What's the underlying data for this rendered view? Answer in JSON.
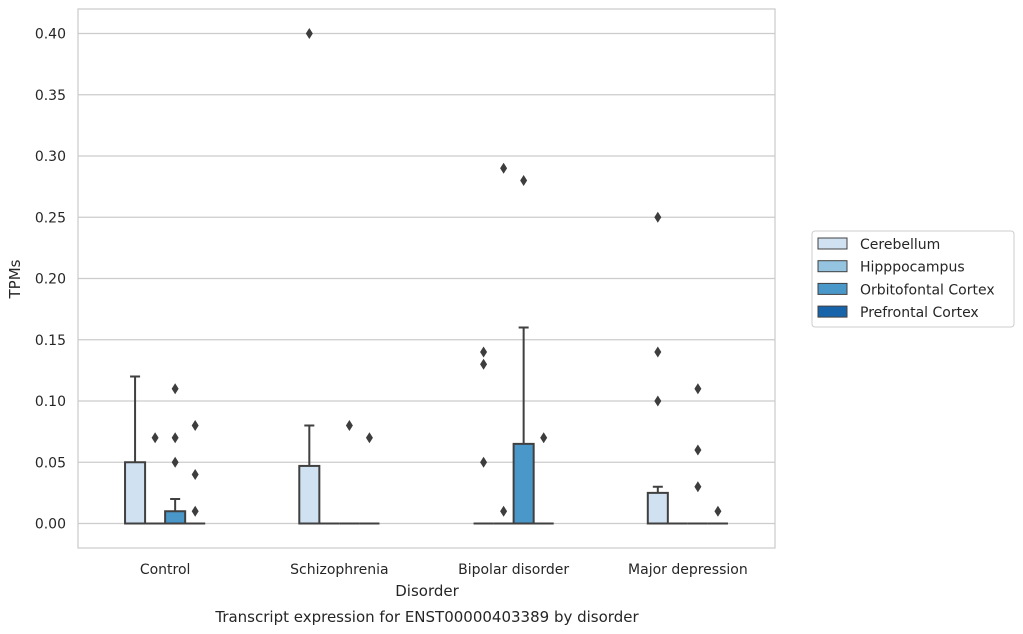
{
  "chart_data": {
    "type": "box",
    "title": "Transcript expression for ENST00000403389 by disorder",
    "xlabel": "Disorder",
    "ylabel": "TPMs",
    "ylim": [
      -0.02,
      0.42
    ],
    "yticks": [
      0.0,
      0.05,
      0.1,
      0.15,
      0.2,
      0.25,
      0.3,
      0.35,
      0.4
    ],
    "ytick_labels": [
      "0.00",
      "0.05",
      "0.10",
      "0.15",
      "0.20",
      "0.25",
      "0.30",
      "0.35",
      "0.40"
    ],
    "grid": true,
    "legend_position": "right",
    "categories": [
      "Control",
      "Schizophrenia",
      "Bipolar disorder",
      "Major depression"
    ],
    "series": [
      {
        "name": "Cerebellum",
        "color": "#d0e1f2",
        "boxes": [
          {
            "q1": 0.0,
            "median": 0.0,
            "q3": 0.05,
            "whisker_low": 0.0,
            "whisker_high": 0.12,
            "outliers": []
          },
          {
            "q1": 0.0,
            "median": 0.0,
            "q3": 0.047,
            "whisker_low": 0.0,
            "whisker_high": 0.08,
            "outliers": [
              0.4
            ]
          },
          {
            "q1": 0.0,
            "median": 0.0,
            "q3": 0.0,
            "whisker_low": 0.0,
            "whisker_high": 0.0,
            "outliers": [
              0.14,
              0.13,
              0.05
            ]
          },
          {
            "q1": 0.0,
            "median": 0.0,
            "q3": 0.025,
            "whisker_low": 0.0,
            "whisker_high": 0.03,
            "outliers": [
              0.25,
              0.14,
              0.1
            ]
          }
        ]
      },
      {
        "name": "Hipppocampus",
        "color": "#94c4df",
        "boxes": [
          {
            "q1": 0.0,
            "median": 0.0,
            "q3": 0.0,
            "whisker_low": 0.0,
            "whisker_high": 0.0,
            "outliers": [
              0.07
            ]
          },
          {
            "q1": 0.0,
            "median": 0.0,
            "q3": 0.0,
            "whisker_low": 0.0,
            "whisker_high": 0.0,
            "outliers": []
          },
          {
            "q1": 0.0,
            "median": 0.0,
            "q3": 0.0,
            "whisker_low": 0.0,
            "whisker_high": 0.0,
            "outliers": [
              0.29,
              0.01
            ]
          },
          {
            "q1": 0.0,
            "median": 0.0,
            "q3": 0.0,
            "whisker_low": 0.0,
            "whisker_high": 0.0,
            "outliers": []
          }
        ]
      },
      {
        "name": "Orbitofontal Cortex",
        "color": "#4a98c9",
        "boxes": [
          {
            "q1": 0.0,
            "median": 0.0,
            "q3": 0.01,
            "whisker_low": 0.0,
            "whisker_high": 0.02,
            "outliers": [
              0.11,
              0.07,
              0.05
            ]
          },
          {
            "q1": 0.0,
            "median": 0.0,
            "q3": 0.0,
            "whisker_low": 0.0,
            "whisker_high": 0.0,
            "outliers": [
              0.08
            ]
          },
          {
            "q1": 0.0,
            "median": 0.0,
            "q3": 0.065,
            "whisker_low": 0.0,
            "whisker_high": 0.16,
            "outliers": [
              0.28
            ]
          },
          {
            "q1": 0.0,
            "median": 0.0,
            "q3": 0.0,
            "whisker_low": 0.0,
            "whisker_high": 0.0,
            "outliers": [
              0.11,
              0.06,
              0.03
            ]
          }
        ]
      },
      {
        "name": "Prefrontal Cortex",
        "color": "#1764ab",
        "boxes": [
          {
            "q1": 0.0,
            "median": 0.0,
            "q3": 0.0,
            "whisker_low": 0.0,
            "whisker_high": 0.0,
            "outliers": [
              0.08,
              0.04,
              0.01
            ]
          },
          {
            "q1": 0.0,
            "median": 0.0,
            "q3": 0.0,
            "whisker_low": 0.0,
            "whisker_high": 0.0,
            "outliers": [
              0.07
            ]
          },
          {
            "q1": 0.0,
            "median": 0.0,
            "q3": 0.0,
            "whisker_low": 0.0,
            "whisker_high": 0.0,
            "outliers": [
              0.07
            ]
          },
          {
            "q1": 0.0,
            "median": 0.0,
            "q3": 0.0,
            "whisker_low": 0.0,
            "whisker_high": 0.0,
            "outliers": [
              0.01
            ]
          }
        ]
      }
    ]
  }
}
